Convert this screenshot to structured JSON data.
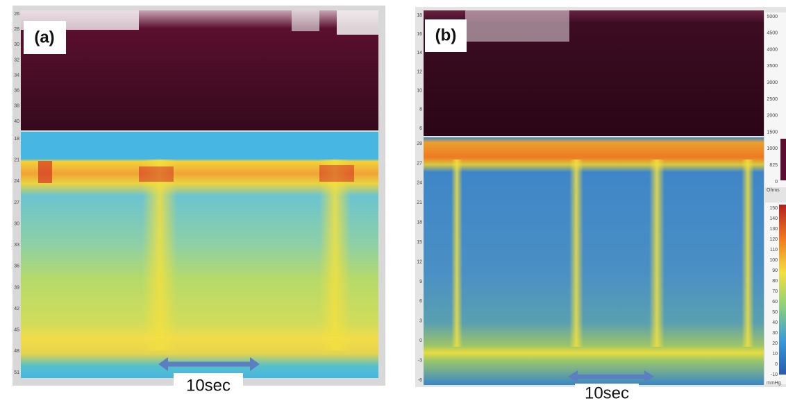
{
  "panels": [
    {
      "label": "(a)",
      "scale_label": "10sec",
      "top_axis": [
        "26",
        "28",
        "30",
        "32",
        "34",
        "36",
        "38",
        "40"
      ],
      "bottom_axis": [
        "18",
        "21",
        "24",
        "27",
        "30",
        "33",
        "36",
        "39",
        "42",
        "45",
        "48",
        "51"
      ]
    },
    {
      "label": "(b)",
      "scale_label": "10sec",
      "top_axis": [
        "18",
        "16",
        "14",
        "12",
        "10",
        "8",
        "6"
      ],
      "bottom_axis": [
        "28",
        "27",
        "24",
        "21",
        "18",
        "15",
        "12",
        "9",
        "6",
        "3",
        "0",
        "-3",
        "-6"
      ],
      "impedance_ticks": [
        "5000",
        "4500",
        "4000",
        "3500",
        "3000",
        "2500",
        "2000",
        "1500",
        "1000",
        "825",
        "0"
      ],
      "impedance_unit": "Ohms",
      "pressure_ticks": [
        "150",
        "140",
        "130",
        "120",
        "110",
        "100",
        "90",
        "80",
        "70",
        "60",
        "50",
        "40",
        "30",
        "20",
        "10",
        "0",
        "-10"
      ],
      "pressure_unit": "mmHg"
    }
  ]
}
